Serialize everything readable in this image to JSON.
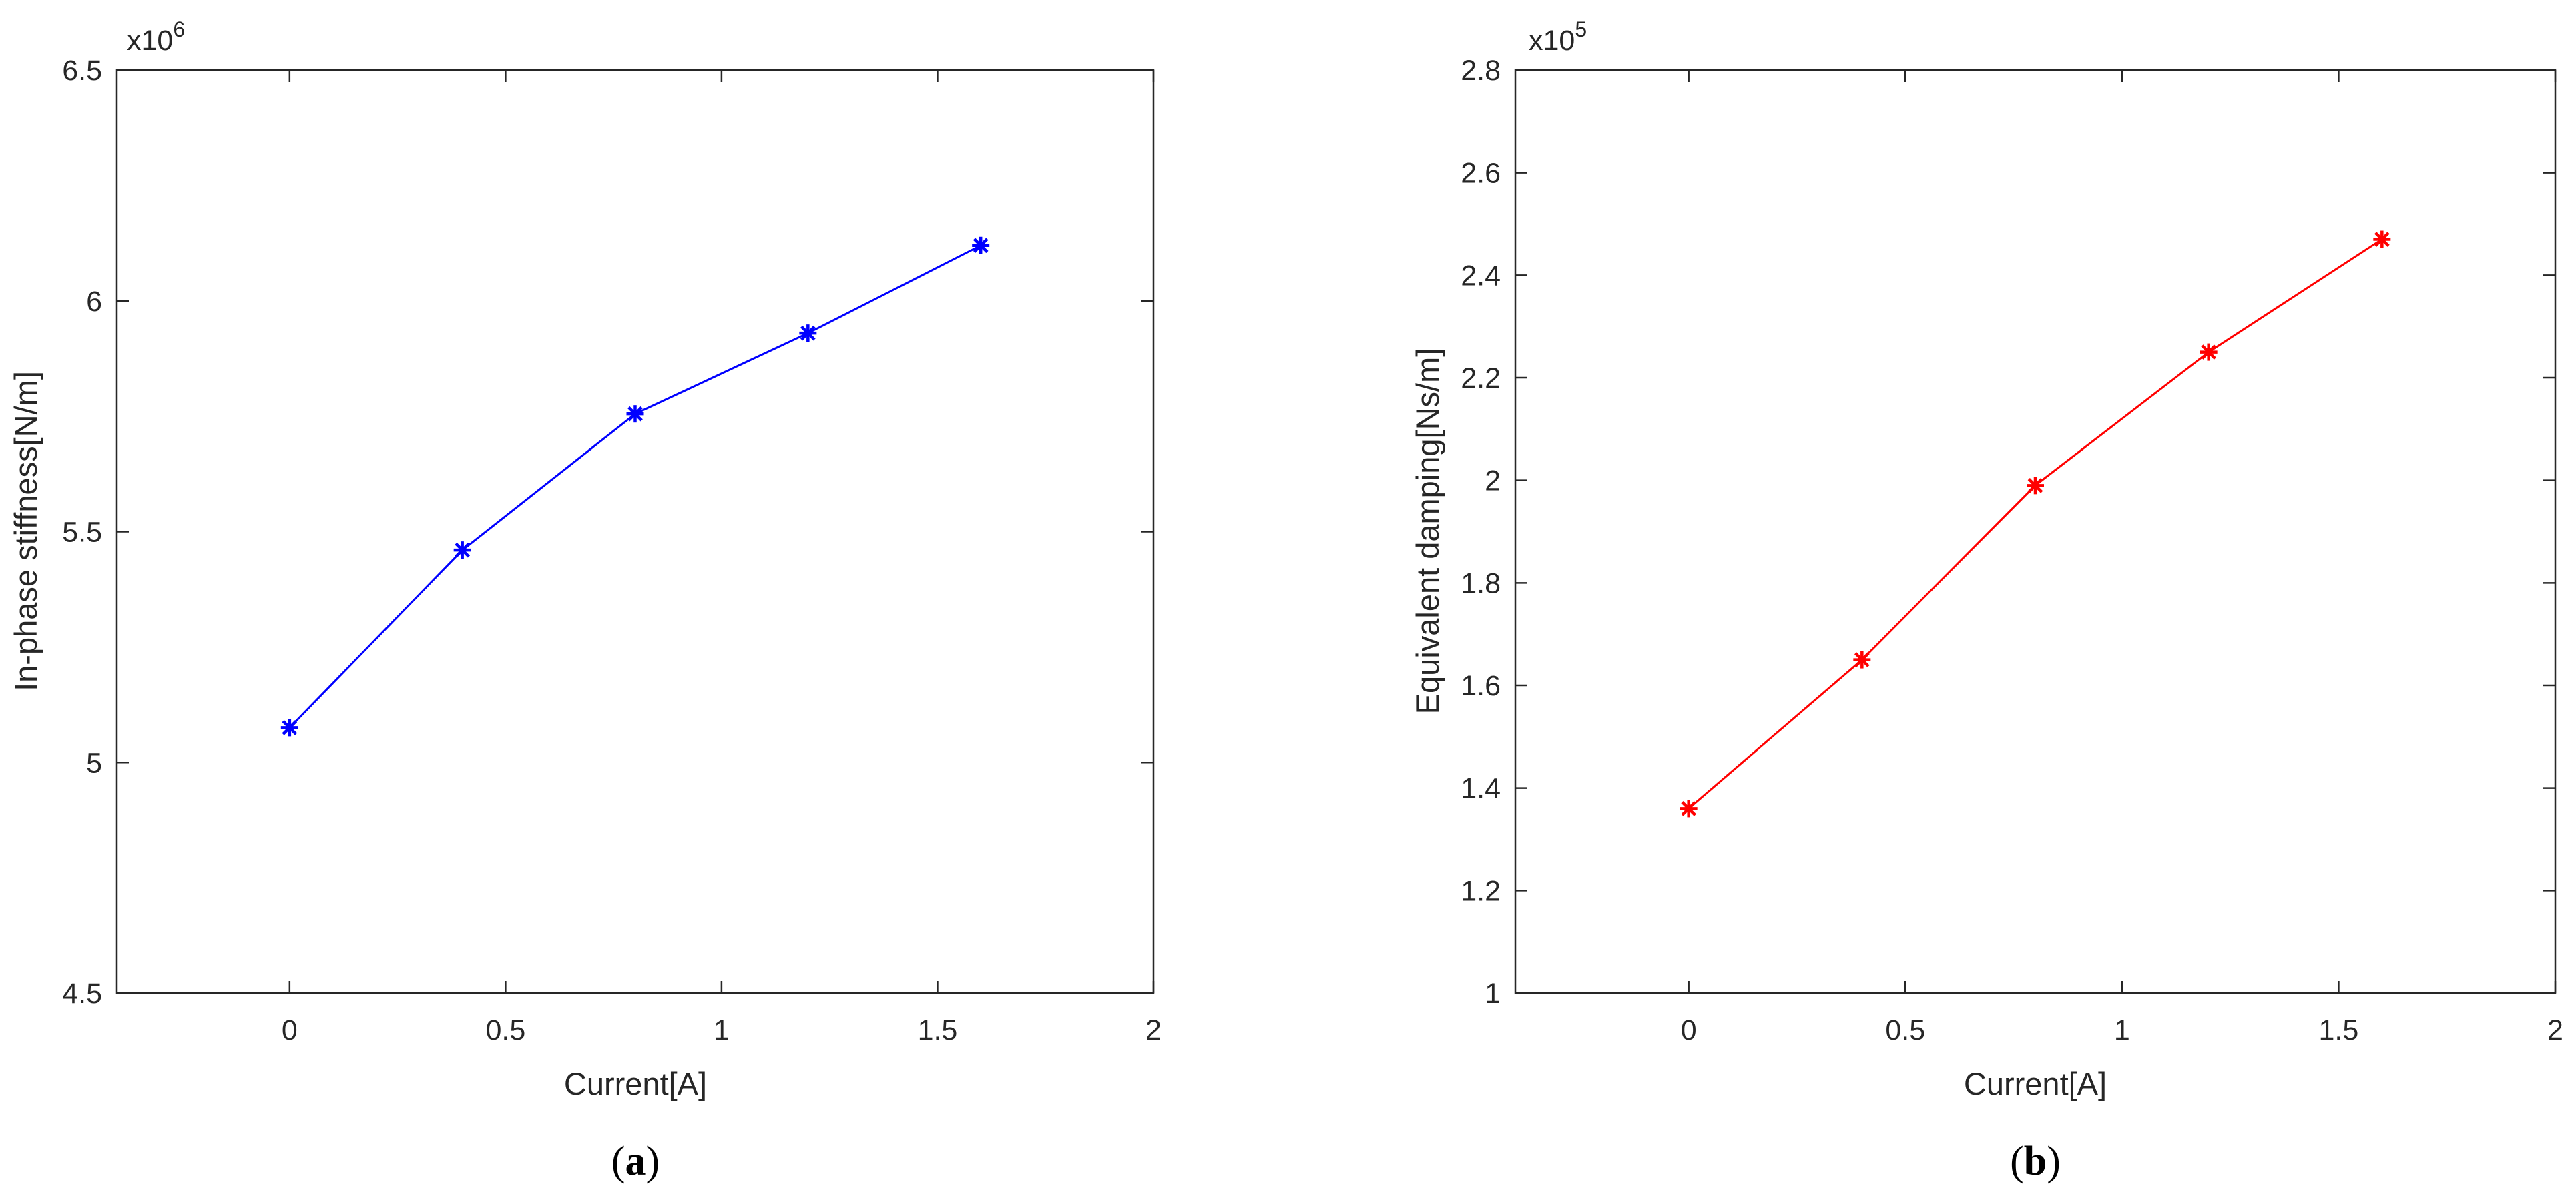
{
  "chart_data": [
    {
      "type": "line",
      "panel_label": "a",
      "title": "",
      "xlabel": "Current[A]",
      "ylabel": "In-phase stiffness[N/m]",
      "y_exponent_label": "x10",
      "y_exponent_power": "6",
      "xlim": [
        -0.4,
        2
      ],
      "ylim": [
        4.5,
        6.5
      ],
      "x_ticks": [
        "0",
        "0.5",
        "1",
        "1.5",
        "2"
      ],
      "y_ticks": [
        "4.5",
        "5",
        "5.5",
        "6",
        "6.5"
      ],
      "grid": false,
      "legend": "none",
      "color": "#0000ff",
      "marker": "asterisk",
      "series": [
        {
          "x": [
            0,
            0.4,
            0.8,
            1.2,
            1.6
          ],
          "y": [
            5.075,
            5.46,
            5.755,
            5.93,
            6.12
          ]
        }
      ]
    },
    {
      "type": "line",
      "panel_label": "b",
      "title": "",
      "xlabel": "Current[A]",
      "ylabel": "Equivalent damping[Ns/m]",
      "y_exponent_label": "x10",
      "y_exponent_power": "5",
      "xlim": [
        -0.4,
        2
      ],
      "ylim": [
        1,
        2.8
      ],
      "x_ticks": [
        "0",
        "0.5",
        "1",
        "1.5",
        "2"
      ],
      "y_ticks": [
        "1",
        "1.2",
        "1.4",
        "1.6",
        "1.8",
        "2",
        "2.2",
        "2.4",
        "2.6",
        "2.8"
      ],
      "grid": false,
      "legend": "none",
      "color": "#ff0000",
      "marker": "asterisk",
      "series": [
        {
          "x": [
            0,
            0.4,
            0.8,
            1.2,
            1.6
          ],
          "y": [
            1.36,
            1.65,
            1.99,
            2.25,
            2.47
          ]
        }
      ]
    }
  ]
}
